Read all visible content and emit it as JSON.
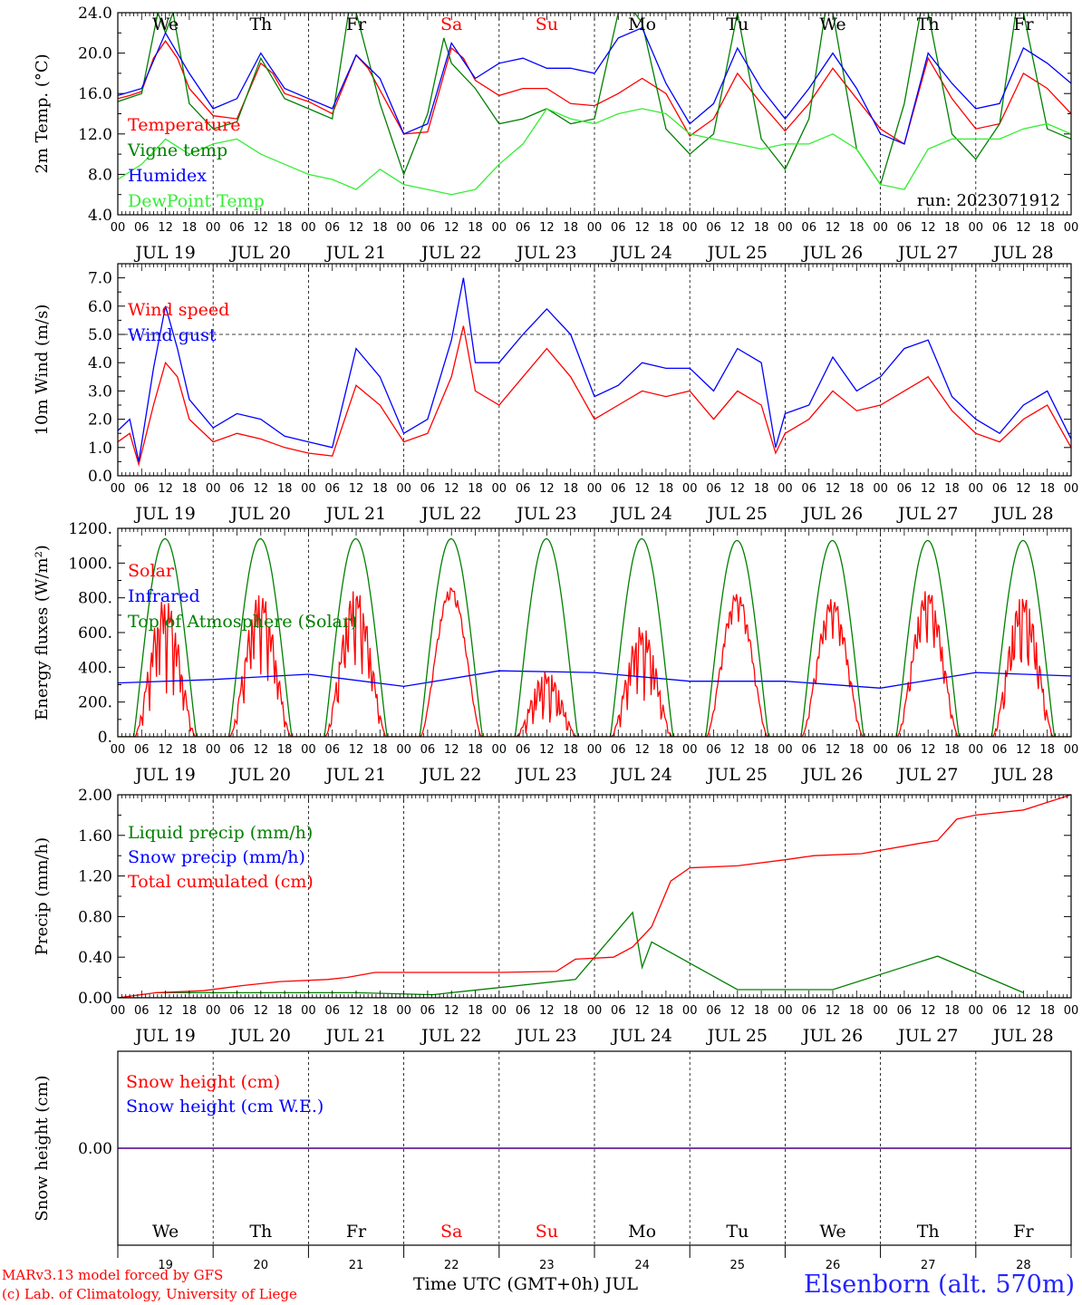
{
  "figure": {
    "station": "Elsenborn (alt. 570m)",
    "credit_line1": "MARv3.13 model forced by GFS",
    "credit_line2": "(c) Lab. of Climatology, University of Liege",
    "x_caption": "Time UTC (GMT+0h) JUL",
    "run_label": "run: 2023071912"
  },
  "colors": {
    "red": "#ff0000",
    "green": "#008000",
    "blue": "#0000ff",
    "lightgreen": "#33ee33",
    "purple": "#7a3aa0",
    "axis": "#000000"
  },
  "time_axis": {
    "days": [
      "JUL 19",
      "JUL 20",
      "JUL 21",
      "JUL 22",
      "JUL 23",
      "JUL 24",
      "JUL 25",
      "JUL 26",
      "JUL 27",
      "JUL 28"
    ],
    "day_numbers": [
      "19",
      "20",
      "21",
      "22",
      "23",
      "24",
      "25",
      "26",
      "27",
      "28"
    ],
    "weekdays": [
      "We",
      "Th",
      "Fr",
      "Sa",
      "Su",
      "Mo",
      "Tu",
      "We",
      "Th",
      "Fr"
    ],
    "weekend_days": [
      "Sa",
      "Su"
    ],
    "hour_ticks": [
      "00",
      "06",
      "12",
      "18"
    ],
    "end_tick": "00"
  },
  "chart_data": [
    {
      "type": "line",
      "ylabel": "2m Temp. (°C)",
      "ylim": [
        4.0,
        24.0
      ],
      "yticks": [
        "4.0",
        "8.0",
        "12.0",
        "16.0",
        "20.0",
        "24.0"
      ],
      "x_unit": "day index (0 = JUL 19 00 UTC)",
      "series": [
        {
          "name": "Temperature",
          "color": "red",
          "x": [
            0,
            0.125,
            0.25,
            0.375,
            0.5,
            0.625,
            0.75,
            1,
            1.25,
            1.5,
            1.625,
            1.75,
            2,
            2.25,
            2.5,
            2.625,
            3,
            3.25,
            3.5,
            3.625,
            3.75,
            4,
            4.25,
            4.5,
            4.75,
            5,
            5.25,
            5.5,
            5.75,
            6,
            6.25,
            6.5,
            6.75,
            7,
            7.25,
            7.5,
            7.75,
            8,
            8.25,
            8.5,
            8.75,
            9,
            9.25,
            9.5,
            9.75,
            10
          ],
          "y": [
            15.5,
            15.8,
            16.2,
            19.5,
            21.2,
            19.5,
            16.5,
            13.8,
            13.5,
            19.0,
            18.0,
            16.0,
            15.2,
            14.0,
            19.8,
            18.5,
            12.0,
            12.2,
            20.5,
            19.5,
            17.3,
            15.8,
            16.5,
            16.5,
            15.0,
            14.8,
            16.0,
            17.5,
            16.0,
            11.8,
            13.5,
            18.0,
            15.0,
            12.3,
            15.0,
            18.5,
            15.5,
            12.5,
            11.0,
            19.5,
            15.5,
            12.5,
            13.0,
            18.0,
            16.5,
            14.0
          ]
        },
        {
          "name": "Vigne temp",
          "color": "green",
          "x": [
            0,
            0.25,
            0.42,
            0.5,
            0.58,
            0.75,
            1,
            1.25,
            1.5,
            1.75,
            2,
            2.25,
            2.42,
            2.5,
            2.75,
            3,
            3.25,
            3.42,
            3.5,
            3.75,
            4,
            4.25,
            4.5,
            4.75,
            5,
            5.25,
            5.42,
            5.5,
            5.75,
            6,
            6.25,
            6.5,
            6.75,
            7,
            7.25,
            7.42,
            7.5,
            7.75,
            8,
            8.25,
            8.42,
            8.5,
            8.75,
            9,
            9.25,
            9.42,
            9.5,
            9.75,
            10
          ],
          "y": [
            15.2,
            16.0,
            24.0,
            22.0,
            24.0,
            15.0,
            12.5,
            13.2,
            19.5,
            15.5,
            14.5,
            13.5,
            24.0,
            24.0,
            15.0,
            8.0,
            14.0,
            21.5,
            19.0,
            16.5,
            13.0,
            13.5,
            14.5,
            13.0,
            13.5,
            24.0,
            24.0,
            23.0,
            12.5,
            10.0,
            12.0,
            24.0,
            11.5,
            8.5,
            13.5,
            24.0,
            24.0,
            10.5,
            7.0,
            15.0,
            24.0,
            24.0,
            12.0,
            9.5,
            13.0,
            24.0,
            24.0,
            12.5,
            11.5
          ]
        },
        {
          "name": "Humidex",
          "color": "blue",
          "x": [
            0,
            0.25,
            0.5,
            0.75,
            1,
            1.25,
            1.5,
            1.75,
            2,
            2.25,
            2.5,
            2.75,
            3,
            3.25,
            3.5,
            3.75,
            4,
            4.25,
            4.5,
            4.75,
            5,
            5.25,
            5.5,
            5.75,
            6,
            6.25,
            6.5,
            6.75,
            7,
            7.25,
            7.5,
            7.75,
            8,
            8.25,
            8.5,
            8.75,
            9,
            9.25,
            9.5,
            9.75,
            10
          ],
          "y": [
            15.8,
            16.5,
            22.0,
            18.0,
            14.5,
            15.5,
            20.0,
            16.5,
            15.5,
            14.5,
            19.8,
            17.5,
            12.0,
            13.0,
            21.0,
            17.5,
            19.0,
            19.5,
            18.5,
            18.5,
            18.0,
            21.5,
            22.5,
            17.0,
            13.0,
            15.0,
            20.5,
            16.5,
            13.5,
            16.5,
            20.0,
            16.5,
            12.0,
            11.0,
            20.0,
            17.0,
            14.5,
            15.0,
            20.5,
            19.0,
            17.0
          ]
        },
        {
          "name": "DewPoint Temp",
          "color": "lightgreen",
          "x": [
            0,
            0.25,
            0.5,
            0.75,
            1,
            1.25,
            1.5,
            1.75,
            2,
            2.25,
            2.5,
            2.75,
            3,
            3.25,
            3.5,
            3.75,
            4,
            4.25,
            4.5,
            4.75,
            5,
            5.25,
            5.5,
            5.75,
            6,
            6.25,
            6.5,
            6.75,
            7,
            7.25,
            7.5,
            7.75,
            8,
            8.25,
            8.5,
            8.75,
            9,
            9.25,
            9.5,
            9.75,
            10
          ],
          "y": [
            7.5,
            9.0,
            11.5,
            10.0,
            11.0,
            11.5,
            10.0,
            9.0,
            8.0,
            7.5,
            6.5,
            8.5,
            7.0,
            6.5,
            6.0,
            6.5,
            9.0,
            11.0,
            14.5,
            13.5,
            13.0,
            14.0,
            14.5,
            14.0,
            12.0,
            11.5,
            11.0,
            10.5,
            11.0,
            11.0,
            12.0,
            10.5,
            7.0,
            6.5,
            10.5,
            11.5,
            11.5,
            11.5,
            12.5,
            13.0,
            12.0
          ]
        }
      ],
      "annotation": "run: 2023071912"
    },
    {
      "type": "line",
      "ylabel": "10m Wind (m/s)",
      "ylim": [
        0.0,
        7.5
      ],
      "yticks": [
        "0.0",
        "1.0",
        "2.0",
        "3.0",
        "4.0",
        "5.0",
        "6.0",
        "7.0"
      ],
      "reference_line": 5.0,
      "series": [
        {
          "name": "Wind speed",
          "color": "red",
          "x": [
            0,
            0.125,
            0.22,
            0.375,
            0.5,
            0.625,
            0.75,
            1,
            1.25,
            1.5,
            1.75,
            2,
            2.25,
            2.5,
            2.75,
            3,
            3.25,
            3.5,
            3.625,
            3.75,
            4,
            4.25,
            4.5,
            4.75,
            5,
            5.25,
            5.5,
            5.75,
            6,
            6.25,
            6.5,
            6.75,
            6.9,
            7,
            7.25,
            7.5,
            7.75,
            8,
            8.25,
            8.5,
            8.75,
            9,
            9.25,
            9.5,
            9.75,
            10
          ],
          "y": [
            1.2,
            1.5,
            0.4,
            2.5,
            4.0,
            3.5,
            2.0,
            1.2,
            1.5,
            1.3,
            1.0,
            0.8,
            0.7,
            3.2,
            2.5,
            1.2,
            1.5,
            3.5,
            5.3,
            3.0,
            2.5,
            3.5,
            4.5,
            3.5,
            2.0,
            2.5,
            3.0,
            2.8,
            3.0,
            2.0,
            3.0,
            2.5,
            0.8,
            1.5,
            2.0,
            3.0,
            2.3,
            2.5,
            3.0,
            3.5,
            2.3,
            1.5,
            1.2,
            2.0,
            2.5,
            1.0
          ]
        },
        {
          "name": "Wind gust",
          "color": "blue",
          "x": [
            0,
            0.125,
            0.22,
            0.375,
            0.5,
            0.625,
            0.75,
            1,
            1.25,
            1.5,
            1.75,
            2,
            2.25,
            2.5,
            2.75,
            3,
            3.25,
            3.5,
            3.625,
            3.75,
            4,
            4.25,
            4.5,
            4.75,
            5,
            5.25,
            5.5,
            5.75,
            6,
            6.25,
            6.5,
            6.75,
            6.9,
            7,
            7.25,
            7.5,
            7.75,
            8,
            8.25,
            8.5,
            8.75,
            9,
            9.25,
            9.5,
            9.75,
            10
          ],
          "y": [
            1.6,
            2.0,
            0.5,
            3.8,
            6.0,
            4.5,
            2.7,
            1.7,
            2.2,
            2.0,
            1.4,
            1.2,
            1.0,
            4.5,
            3.5,
            1.5,
            2.0,
            4.8,
            7.0,
            4.0,
            4.0,
            5.0,
            5.9,
            5.0,
            2.8,
            3.2,
            4.0,
            3.8,
            3.8,
            3.0,
            4.5,
            4.0,
            1.0,
            2.2,
            2.5,
            4.2,
            3.0,
            3.5,
            4.5,
            4.8,
            2.8,
            2.0,
            1.5,
            2.5,
            3.0,
            1.3
          ]
        }
      ]
    },
    {
      "type": "line",
      "ylabel": "Energy fluxes (W/m²)",
      "ylim": [
        0,
        1200
      ],
      "yticks": [
        "0.",
        "200.",
        "400.",
        "600.",
        "800.",
        "1000.",
        "1200."
      ],
      "series": [
        {
          "name": "Solar",
          "color": "red",
          "daily_peak": [
            800,
            830,
            850,
            860,
            380,
            640,
            830,
            800,
            850,
            820
          ],
          "daily_cloudiness": [
            0.7,
            0.6,
            0.6,
            0.1,
            0.9,
            0.7,
            0.2,
            0.3,
            0.4,
            0.6
          ]
        },
        {
          "name": "Infrared",
          "color": "blue",
          "x": [
            0,
            1,
            2,
            3,
            4,
            5,
            6,
            7,
            8,
            9,
            10
          ],
          "y": [
            310,
            330,
            360,
            290,
            380,
            370,
            320,
            320,
            280,
            370,
            350
          ]
        },
        {
          "name": "Top of Atmosphere (Solar)",
          "color": "green",
          "daily_peak": [
            1140,
            1140,
            1140,
            1140,
            1140,
            1140,
            1130,
            1130,
            1130,
            1130
          ],
          "sunrise_hour": 4.0,
          "sunset_hour": 19.8
        }
      ]
    },
    {
      "type": "line",
      "ylabel": "Precip (mm/h)",
      "ylim": [
        0.0,
        2.0
      ],
      "yticks": [
        "0.00",
        "0.40",
        "0.80",
        "1.20",
        "1.60",
        "2.00"
      ],
      "series": [
        {
          "name": "Liquid precip (mm/h)",
          "color": "green",
          "x": [
            0.4,
            1.6,
            2.5,
            3.3,
            4.8,
            5.4,
            5.5,
            5.6,
            6.5,
            7.5,
            8.6,
            9.5
          ],
          "y": [
            0.05,
            0.05,
            0.05,
            0.03,
            0.18,
            0.84,
            0.3,
            0.55,
            0.08,
            0.08,
            0.41,
            0.05
          ]
        },
        {
          "name": "Snow precip (mm/h)",
          "color": "blue",
          "x": [
            0,
            10
          ],
          "y": [
            0,
            0
          ]
        },
        {
          "name": "Total cumulated (cm)",
          "color": "red",
          "x": [
            0,
            0.4,
            0.9,
            1.3,
            1.7,
            2.2,
            2.4,
            2.7,
            3.0,
            3.5,
            4.0,
            4.6,
            4.8,
            5.2,
            5.4,
            5.6,
            5.8,
            6.0,
            6.5,
            7.0,
            7.3,
            7.8,
            8.4,
            8.6,
            8.8,
            9.0,
            9.5,
            10
          ],
          "y": [
            0.0,
            0.05,
            0.07,
            0.12,
            0.16,
            0.18,
            0.2,
            0.25,
            0.25,
            0.25,
            0.25,
            0.26,
            0.38,
            0.4,
            0.5,
            0.7,
            1.15,
            1.28,
            1.3,
            1.36,
            1.4,
            1.42,
            1.52,
            1.55,
            1.76,
            1.8,
            1.85,
            2.0
          ]
        }
      ]
    },
    {
      "type": "line",
      "ylabel": "Snow height (cm)",
      "ylim": [
        -1,
        1
      ],
      "yticks": [
        "0.00"
      ],
      "series": [
        {
          "name": "Snow height (cm)",
          "color": "red",
          "x": [
            0,
            10
          ],
          "y": [
            0,
            0
          ]
        },
        {
          "name": "Snow height (cm W.E.)",
          "color": "blue",
          "x": [
            0,
            10
          ],
          "y": [
            0,
            0
          ]
        }
      ]
    }
  ]
}
